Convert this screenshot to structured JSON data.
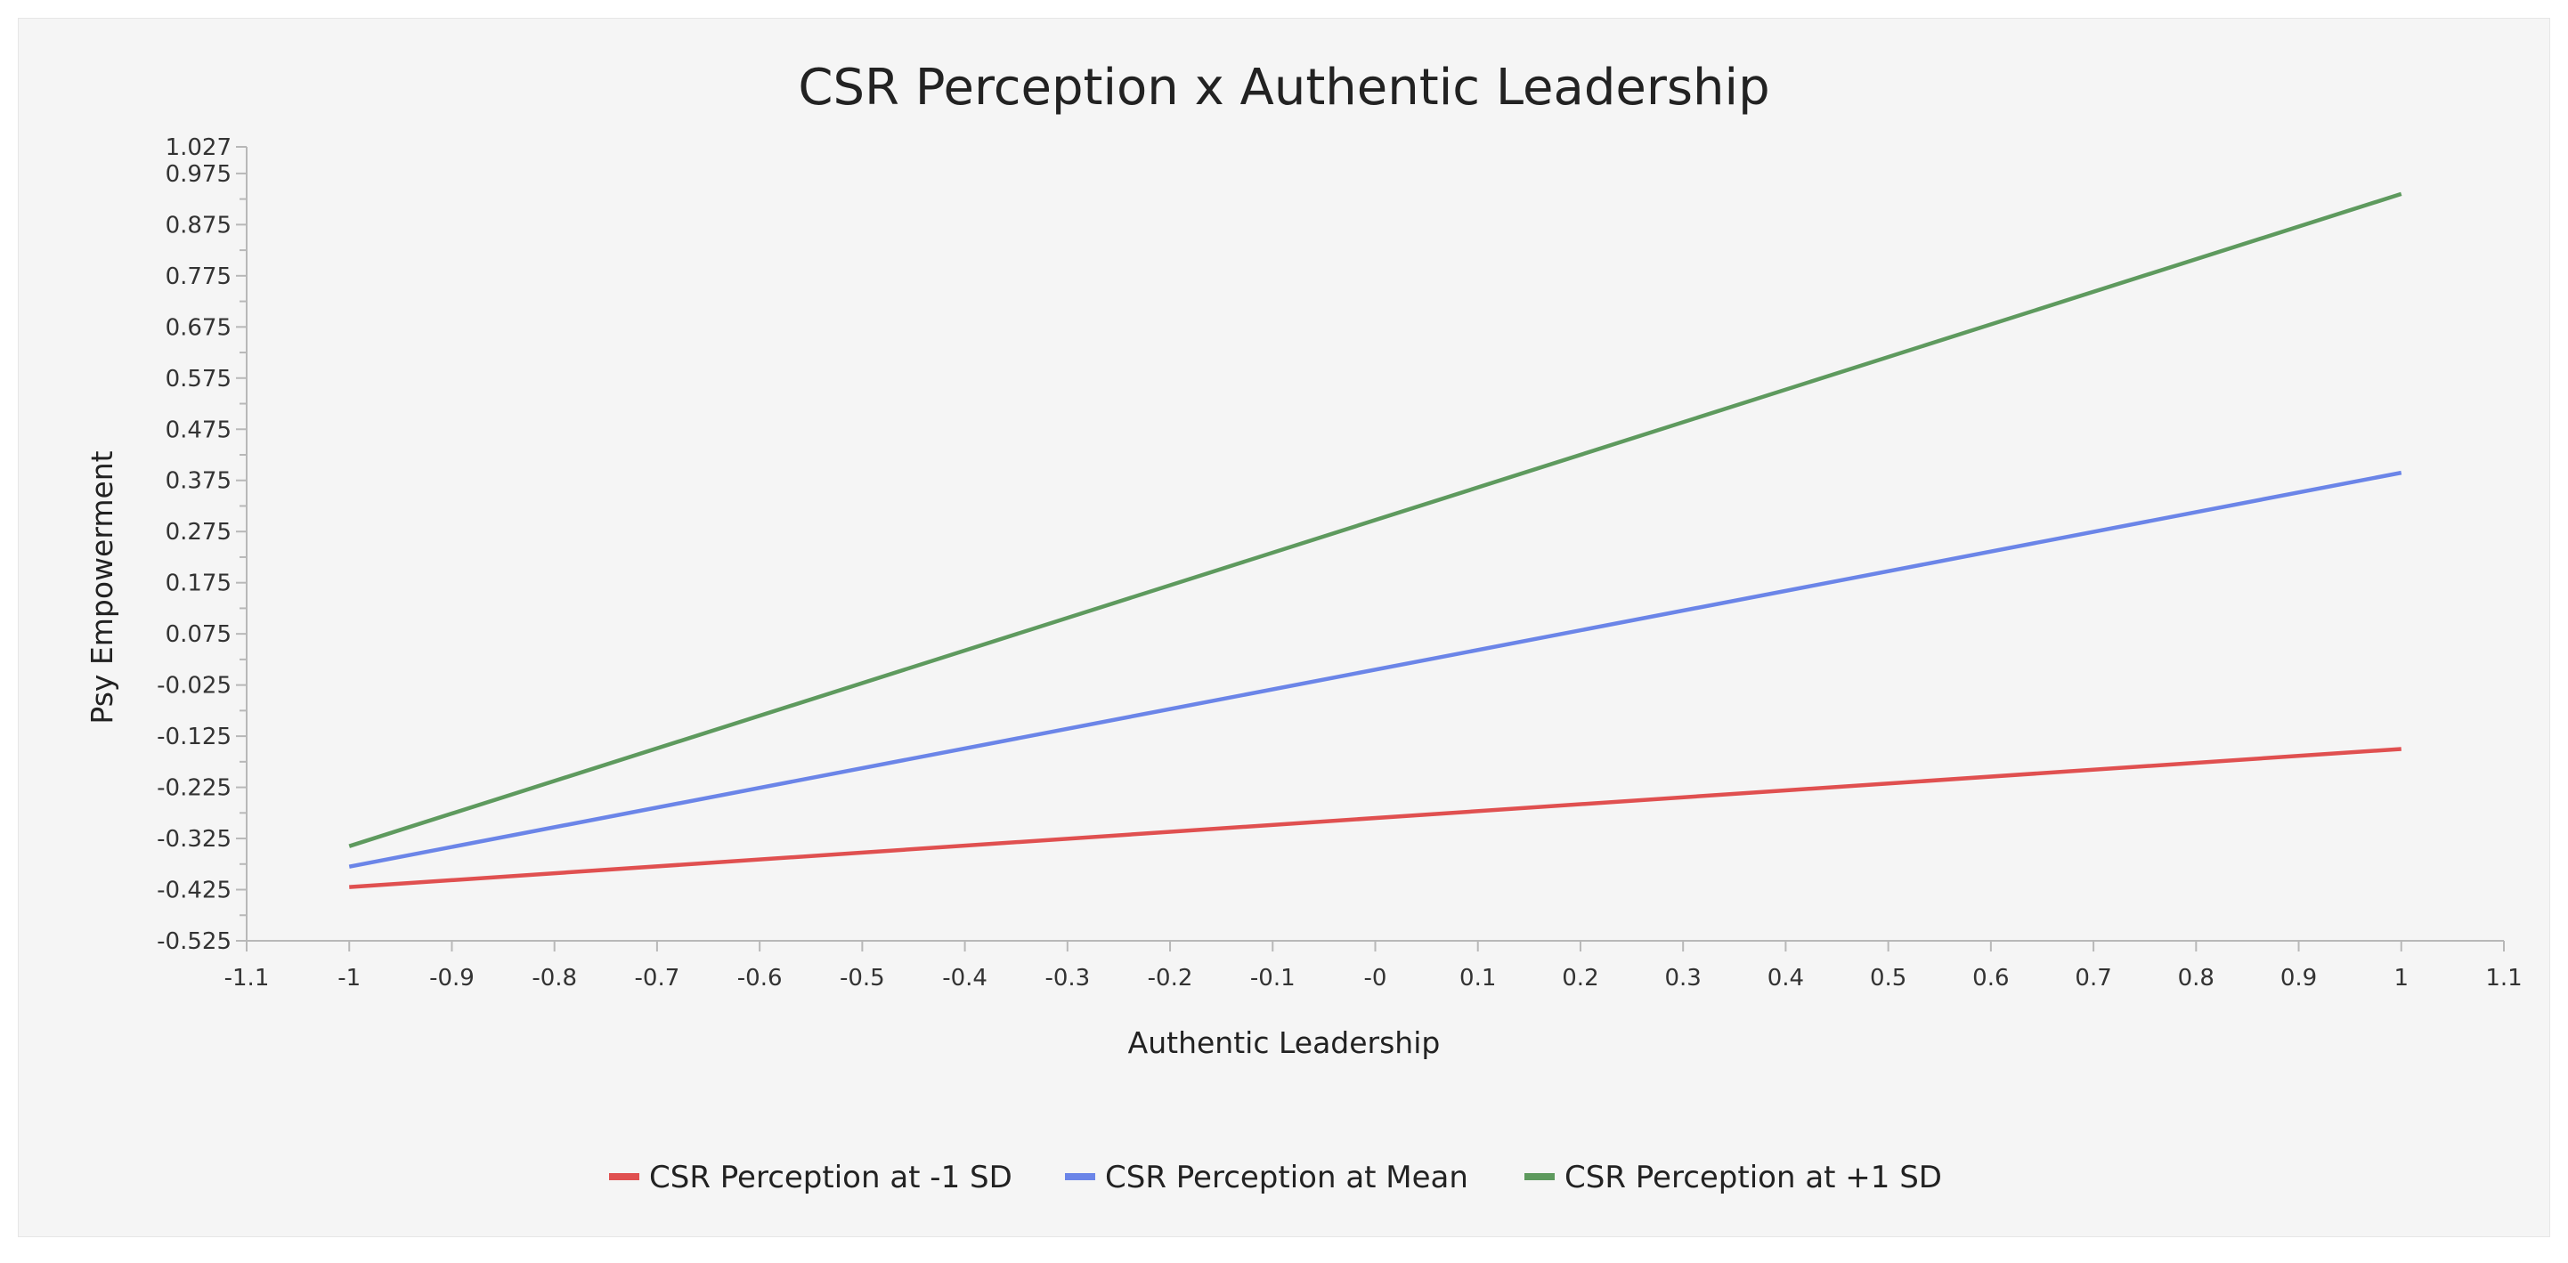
{
  "chart_data": {
    "type": "line",
    "title": "CSR Perception x Authentic Leadership",
    "xlabel": "Authentic Leadership",
    "ylabel": "Psy Empowerment",
    "xlim": [
      -1.1,
      1.1
    ],
    "ylim": [
      -0.525,
      1.027
    ],
    "x_ticks": [
      -1.1,
      -1,
      -0.9,
      -0.8,
      -0.7,
      -0.6,
      -0.5,
      -0.4,
      -0.3,
      -0.2,
      -0.1,
      0,
      0.1,
      0.2,
      0.3,
      0.4,
      0.5,
      0.6,
      0.7,
      0.8,
      0.9,
      1,
      1.1
    ],
    "x_tick_labels": [
      "-1.1",
      "-1",
      "-0.9",
      "-0.8",
      "-0.7",
      "-0.6",
      "-0.5",
      "-0.4",
      "-0.3",
      "-0.2",
      "-0.1",
      "-0",
      "0.1",
      "0.2",
      "0.3",
      "0.4",
      "0.5",
      "0.6",
      "0.7",
      "0.8",
      "0.9",
      "1",
      "1.1"
    ],
    "y_ticks": [
      -0.525,
      -0.425,
      -0.325,
      -0.225,
      -0.125,
      -0.025,
      0.075,
      0.175,
      0.275,
      0.375,
      0.475,
      0.575,
      0.675,
      0.775,
      0.875,
      0.975,
      1.027
    ],
    "y_tick_labels": [
      "-0.525",
      "-0.425",
      "-0.325",
      "-0.225",
      "-0.125",
      "-0.025",
      "0.075",
      "0.175",
      "0.275",
      "0.375",
      "0.475",
      "0.575",
      "0.675",
      "0.775",
      "0.875",
      "0.975",
      "1.027"
    ],
    "grid": false,
    "legend_position": "bottom-center",
    "series": [
      {
        "name": "CSR Perception at -1 SD",
        "color": "#e05050",
        "x": [
          -1,
          1
        ],
        "y": [
          -0.42,
          -0.15
        ]
      },
      {
        "name": "CSR Perception at Mean",
        "color": "#6b85e8",
        "x": [
          -1,
          1
        ],
        "y": [
          -0.38,
          0.39
        ]
      },
      {
        "name": "CSR Perception at +1 SD",
        "color": "#5e9a5e",
        "x": [
          -1,
          1
        ],
        "y": [
          -0.34,
          0.935
        ]
      }
    ]
  }
}
